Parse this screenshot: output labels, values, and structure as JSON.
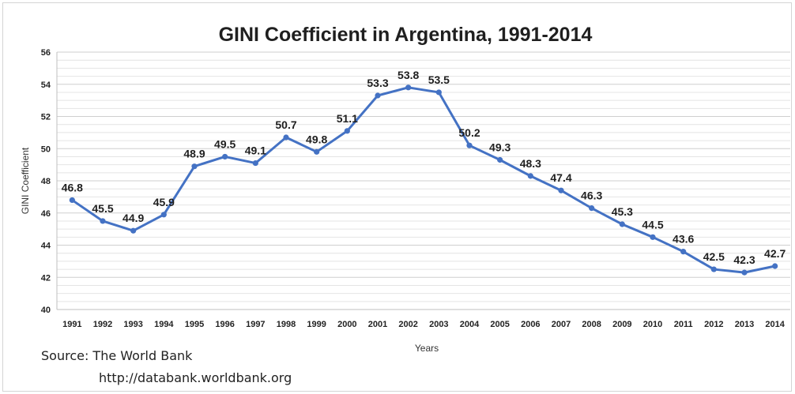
{
  "chart_data": {
    "type": "line",
    "title": "GINI Coefficient in Argentina, 1991-2014",
    "xlabel": "Years",
    "ylabel": "GINI Coefficient",
    "ylim": [
      40,
      56
    ],
    "yticks": [
      "40",
      "42",
      "44",
      "46",
      "48",
      "50",
      "52",
      "54",
      "56"
    ],
    "grid": true,
    "color": "#4472C4",
    "categories": [
      "1991",
      "1992",
      "1993",
      "1994",
      "1995",
      "1996",
      "1997",
      "1998",
      "1999",
      "2000",
      "2001",
      "2002",
      "2003",
      "2004",
      "2005",
      "2006",
      "2007",
      "2008",
      "2009",
      "2010",
      "2011",
      "2012",
      "2013",
      "2014"
    ],
    "series": [
      {
        "values": [
          46.8,
          45.5,
          44.9,
          45.9,
          48.9,
          49.5,
          49.1,
          50.7,
          49.8,
          51.1,
          53.3,
          53.8,
          53.5,
          50.2,
          49.3,
          48.3,
          47.4,
          46.3,
          45.3,
          44.5,
          43.6,
          42.5,
          42.3,
          42.7
        ],
        "labels": [
          "46.8",
          "45.5",
          "44.9",
          "45.9",
          "48.9",
          "49.5",
          "49.1",
          "50.7",
          "49.8",
          "51.1",
          "53.3",
          "53.8",
          "53.5",
          "50.2",
          "49.3",
          "48.3",
          "47.4",
          "46.3",
          "45.3",
          "44.5",
          "43.6",
          "42.5",
          "42.3",
          "42.7"
        ]
      }
    ]
  },
  "source": {
    "line1": "Source: The World Bank",
    "line2": "http://databank.worldbank.org"
  }
}
